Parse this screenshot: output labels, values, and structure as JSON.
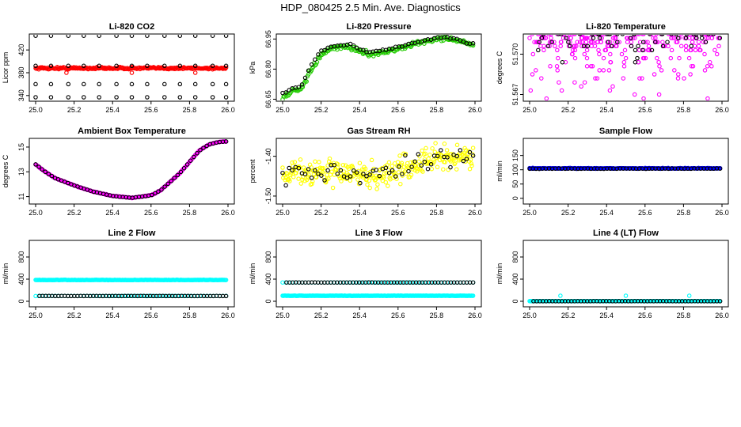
{
  "title": "HDP_080425  2.5 Min. Ave. Diagnostics",
  "colors": {
    "black": "#000000",
    "red": "#ff0000",
    "green": "#22cc00",
    "magenta": "#ff00ff",
    "yellow": "#ffff00",
    "blue": "#0000ff",
    "cyan": "#00ffff"
  },
  "chart_data": [
    {
      "id": "li820-co2",
      "type": "scatter",
      "title": "Li-820 CO2",
      "ylabel": "Licor ppm",
      "xlim": [
        25.0,
        26.0
      ],
      "ylim": [
        330,
        448
      ],
      "xticks": [
        "25.0",
        "25.2",
        "25.4",
        "25.6",
        "25.8",
        "26.0"
      ],
      "yticks": [
        "340",
        "380",
        "420"
      ],
      "series": [
        {
          "name": "licor",
          "color": "red",
          "pattern": "flat",
          "n": 240,
          "start": 25.0,
          "end": 25.99,
          "base": 388,
          "noise": 2.5,
          "outliers": [
            [
              25.16,
              380
            ],
            [
              25.5,
              380
            ],
            [
              25.83,
              380
            ]
          ]
        },
        {
          "name": "samples",
          "color": "black",
          "pattern": "cols",
          "xs": [
            25.0,
            25.08,
            25.17,
            25.25,
            25.33,
            25.42,
            25.5,
            25.58,
            25.67,
            25.75,
            25.83,
            25.92,
            25.99
          ],
          "levels": [
            337,
            360,
            392,
            445
          ]
        }
      ]
    },
    {
      "id": "li820-pressure",
      "type": "scatter",
      "title": "Li-820 Pressure",
      "ylabel": "kPa",
      "xlim": [
        25.0,
        26.0
      ],
      "ylim": [
        66.64,
        66.975
      ],
      "xticks": [
        "25.0",
        "25.2",
        "25.4",
        "25.6",
        "25.8",
        "26.0"
      ],
      "yticks": [
        "66.65",
        "66.80",
        "66.95"
      ],
      "series": [
        {
          "name": "pressure",
          "color": "green",
          "pattern": "curve",
          "n": 200,
          "start": 25.0,
          "end": 25.99,
          "noise": 0.012,
          "knots": [
            [
              25.0,
              66.66
            ],
            [
              25.05,
              66.69
            ],
            [
              25.1,
              66.7
            ],
            [
              25.15,
              66.8
            ],
            [
              25.2,
              66.87
            ],
            [
              25.25,
              66.9
            ],
            [
              25.3,
              66.91
            ],
            [
              25.35,
              66.91
            ],
            [
              25.4,
              66.89
            ],
            [
              25.45,
              66.875
            ],
            [
              25.5,
              66.88
            ],
            [
              25.55,
              66.89
            ],
            [
              25.6,
              66.9
            ],
            [
              25.7,
              66.93
            ],
            [
              25.8,
              66.95
            ],
            [
              25.85,
              66.955
            ],
            [
              25.9,
              66.945
            ],
            [
              25.95,
              66.93
            ],
            [
              25.99,
              66.92
            ]
          ]
        },
        {
          "name": "samples",
          "color": "black",
          "pattern": "curve",
          "n": 60,
          "start": 25.0,
          "end": 25.99,
          "noise": 0.005,
          "knots": [
            [
              25.0,
              66.68
            ],
            [
              25.05,
              66.7
            ],
            [
              25.1,
              66.72
            ],
            [
              25.15,
              66.82
            ],
            [
              25.2,
              66.89
            ],
            [
              25.25,
              66.91
            ],
            [
              25.3,
              66.92
            ],
            [
              25.35,
              66.925
            ],
            [
              25.4,
              66.9
            ],
            [
              25.45,
              66.885
            ],
            [
              25.5,
              66.89
            ],
            [
              25.55,
              66.9
            ],
            [
              25.6,
              66.91
            ],
            [
              25.7,
              66.935
            ],
            [
              25.8,
              66.955
            ],
            [
              25.85,
              66.96
            ],
            [
              25.9,
              66.95
            ],
            [
              25.95,
              66.935
            ],
            [
              25.99,
              66.925
            ]
          ]
        }
      ]
    },
    {
      "id": "li820-temperature",
      "type": "scatter",
      "title": "Li-820 Temperature",
      "ylabel": "degrees C",
      "xlim": [
        25.0,
        26.0
      ],
      "ylim": [
        51.5665,
        51.5715
      ],
      "xticks": [
        "25.0",
        "25.2",
        "25.4",
        "25.6",
        "25.8",
        "26.0"
      ],
      "yticks": [
        "51.567",
        "51.570"
      ],
      "series": [
        {
          "name": "temp",
          "color": "magenta",
          "pattern": "levels",
          "n": 260,
          "start": 25.0,
          "end": 25.99,
          "levels": [
            51.5715,
            51.5712,
            51.5709,
            51.5706,
            51.5703,
            51.57,
            51.5697,
            51.5694,
            51.5691,
            51.5688,
            51.5685,
            51.5682,
            51.5679,
            51.5676,
            51.5673,
            51.567,
            51.5667
          ],
          "weights": [
            40,
            30,
            24,
            18,
            14,
            10,
            8,
            7,
            6,
            5,
            4,
            3,
            3,
            2,
            2,
            1,
            1
          ]
        },
        {
          "name": "samples",
          "color": "black",
          "pattern": "levels",
          "n": 60,
          "start": 25.0,
          "end": 25.99,
          "levels": [
            51.5715,
            51.5712,
            51.5709,
            51.5706,
            51.5703,
            51.57,
            51.5697,
            51.5694,
            51.5691
          ],
          "weights": [
            30,
            14,
            8,
            6,
            4,
            3,
            2,
            2,
            1
          ]
        }
      ]
    },
    {
      "id": "ambient-box-temperature",
      "type": "scatter",
      "title": "Ambient Box Temperature",
      "ylabel": "degrees C",
      "xlim": [
        25.0,
        26.0
      ],
      "ylim": [
        10.4,
        15.7
      ],
      "xticks": [
        "25.0",
        "25.2",
        "25.4",
        "25.6",
        "25.8",
        "26.0"
      ],
      "yticks": [
        "11",
        "13",
        "15"
      ],
      "series": [
        {
          "name": "temp",
          "color": "magenta",
          "pattern": "curve",
          "n": 260,
          "start": 25.0,
          "end": 25.99,
          "noise": 0.03,
          "knots": [
            [
              25.0,
              13.6
            ],
            [
              25.05,
              13.0
            ],
            [
              25.1,
              12.5
            ],
            [
              25.2,
              11.9
            ],
            [
              25.3,
              11.4
            ],
            [
              25.4,
              11.05
            ],
            [
              25.5,
              10.9
            ],
            [
              25.6,
              11.1
            ],
            [
              25.65,
              11.5
            ],
            [
              25.7,
              12.2
            ],
            [
              25.75,
              12.9
            ],
            [
              25.8,
              13.8
            ],
            [
              25.85,
              14.7
            ],
            [
              25.9,
              15.2
            ],
            [
              25.95,
              15.4
            ],
            [
              25.99,
              15.45
            ]
          ]
        },
        {
          "name": "samples",
          "color": "black",
          "pattern": "curve",
          "n": 60,
          "start": 25.0,
          "end": 25.99,
          "noise": 0.0,
          "knots": [
            [
              25.0,
              13.6
            ],
            [
              25.05,
              13.0
            ],
            [
              25.1,
              12.5
            ],
            [
              25.2,
              11.9
            ],
            [
              25.3,
              11.4
            ],
            [
              25.4,
              11.05
            ],
            [
              25.5,
              10.9
            ],
            [
              25.6,
              11.1
            ],
            [
              25.65,
              11.5
            ],
            [
              25.7,
              12.2
            ],
            [
              25.75,
              12.9
            ],
            [
              25.8,
              13.8
            ],
            [
              25.85,
              14.7
            ],
            [
              25.9,
              15.2
            ],
            [
              25.95,
              15.4
            ],
            [
              25.99,
              15.45
            ]
          ]
        }
      ]
    },
    {
      "id": "gas-stream-rh",
      "type": "scatter",
      "title": "Gas Stream RH",
      "ylabel": "percent",
      "xlim": [
        25.0,
        26.0
      ],
      "ylim": [
        -1.52,
        -1.355
      ],
      "xticks": [
        "25.0",
        "25.2",
        "25.4",
        "25.6",
        "25.8",
        "26.0"
      ],
      "yticks": [
        "-1.50",
        "-1.40"
      ],
      "series": [
        {
          "name": "rh",
          "color": "yellow",
          "pattern": "curve",
          "n": 300,
          "start": 25.0,
          "end": 25.99,
          "noise": 0.035,
          "knots": [
            [
              25.0,
              -1.44
            ],
            [
              25.3,
              -1.44
            ],
            [
              25.5,
              -1.45
            ],
            [
              25.7,
              -1.42
            ],
            [
              25.8,
              -1.405
            ],
            [
              25.99,
              -1.4
            ]
          ]
        },
        {
          "name": "samples",
          "color": "black",
          "pattern": "curve",
          "n": 60,
          "start": 25.0,
          "end": 25.99,
          "noise": 0.025,
          "knots": [
            [
              25.0,
              -1.44
            ],
            [
              25.3,
              -1.44
            ],
            [
              25.5,
              -1.45
            ],
            [
              25.7,
              -1.42
            ],
            [
              25.8,
              -1.405
            ],
            [
              25.99,
              -1.4
            ]
          ]
        }
      ]
    },
    {
      "id": "sample-flow",
      "type": "scatter",
      "title": "Sample Flow",
      "ylabel": "ml/min",
      "xlim": [
        25.0,
        26.0
      ],
      "ylim": [
        -20,
        210
      ],
      "xticks": [
        "25.0",
        "25.2",
        "25.4",
        "25.6",
        "25.8",
        "26.0"
      ],
      "yticks": [
        "0",
        "50",
        "100",
        "150"
      ],
      "series": [
        {
          "name": "flow",
          "color": "blue",
          "pattern": "flat",
          "n": 240,
          "start": 25.0,
          "end": 25.99,
          "base": 105,
          "noise": 1.5
        },
        {
          "name": "samples",
          "color": "black",
          "pattern": "flat",
          "n": 60,
          "start": 25.0,
          "end": 25.99,
          "base": 104,
          "noise": 1.0
        }
      ]
    },
    {
      "id": "line2-flow",
      "type": "scatter",
      "title": "Line 2 Flow",
      "ylabel": "ml/min",
      "xlim": [
        25.0,
        26.0
      ],
      "ylim": [
        -100,
        1100
      ],
      "xticks": [
        "25.0",
        "25.2",
        "25.4",
        "25.6",
        "25.8",
        "26.0"
      ],
      "yticks": [
        "0",
        "400",
        "800"
      ],
      "series": [
        {
          "name": "line2",
          "color": "cyan",
          "pattern": "flat",
          "n": 240,
          "start": 25.0,
          "end": 25.99,
          "base": 385,
          "noise": 4
        },
        {
          "name": "line2-low",
          "color": "cyan",
          "pattern": "flat",
          "n": 60,
          "start": 25.0,
          "end": 25.99,
          "base": 95,
          "noise": 1
        },
        {
          "name": "samples",
          "color": "black",
          "pattern": "flat",
          "n": 60,
          "start": 25.02,
          "end": 25.99,
          "base": 95,
          "noise": 1
        }
      ]
    },
    {
      "id": "line3-flow",
      "type": "scatter",
      "title": "Line 3 Flow",
      "ylabel": "ml/min",
      "xlim": [
        25.0,
        26.0
      ],
      "ylim": [
        -100,
        1100
      ],
      "xticks": [
        "25.0",
        "25.2",
        "25.4",
        "25.6",
        "25.8",
        "26.0"
      ],
      "yticks": [
        "0",
        "400",
        "800"
      ],
      "series": [
        {
          "name": "line3",
          "color": "cyan",
          "pattern": "flat",
          "n": 240,
          "start": 25.0,
          "end": 25.99,
          "base": 100,
          "noise": 3
        },
        {
          "name": "line3-high",
          "color": "cyan",
          "pattern": "flat",
          "n": 60,
          "start": 25.0,
          "end": 25.99,
          "base": 340,
          "noise": 1
        },
        {
          "name": "samples",
          "color": "black",
          "pattern": "flat",
          "n": 60,
          "start": 25.02,
          "end": 25.99,
          "base": 340,
          "noise": 1
        }
      ]
    },
    {
      "id": "line4-flow",
      "type": "scatter",
      "title": "Line 4 (LT) Flow",
      "ylabel": "ml/min",
      "xlim": [
        25.0,
        26.0
      ],
      "ylim": [
        -100,
        1100
      ],
      "xticks": [
        "25.0",
        "25.2",
        "25.4",
        "25.6",
        "25.8",
        "26.0"
      ],
      "yticks": [
        "0",
        "400",
        "800"
      ],
      "series": [
        {
          "name": "line4",
          "color": "cyan",
          "pattern": "flat",
          "n": 240,
          "start": 25.0,
          "end": 25.99,
          "base": 2,
          "noise": 1,
          "outliers": [
            [
              25.16,
              100
            ],
            [
              25.5,
              100
            ],
            [
              25.83,
              100
            ]
          ]
        },
        {
          "name": "samples",
          "color": "black",
          "pattern": "flat",
          "n": 60,
          "start": 25.02,
          "end": 25.99,
          "base": 2,
          "noise": 1
        }
      ]
    }
  ]
}
